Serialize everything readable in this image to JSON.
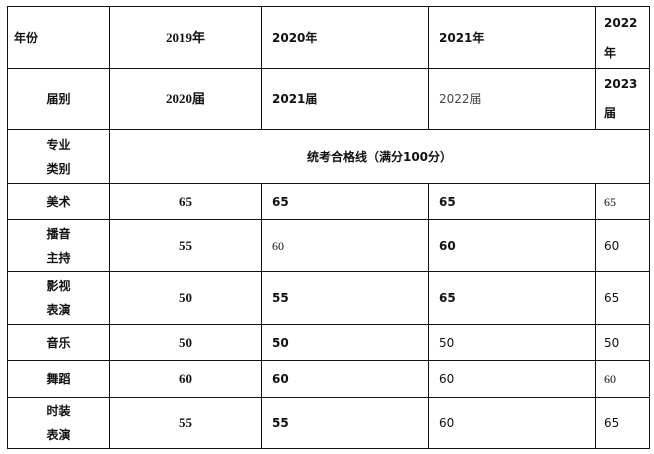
{
  "header": {
    "year_label": "年份",
    "years": [
      "2019年",
      "2020年",
      "2021年",
      "2022\n年"
    ],
    "class_label": "届别",
    "classes": [
      "2020届",
      "2021届",
      "2022届",
      "2023\n届"
    ],
    "major_label": "专业\n类别",
    "merged_title": "统考合格线（满分100分）"
  },
  "rows": [
    {
      "name": "美术",
      "values": [
        "65",
        "65",
        "65",
        "65"
      ]
    },
    {
      "name": "播音\n主持",
      "values": [
        "55",
        "60",
        "60",
        "60"
      ]
    },
    {
      "name": "影视\n表演",
      "values": [
        "50",
        "55",
        "65",
        "65"
      ]
    },
    {
      "name": "音乐",
      "values": [
        "50",
        "50",
        "50",
        "50"
      ]
    },
    {
      "name": "舞蹈",
      "values": [
        "60",
        "60",
        "60",
        "60"
      ]
    },
    {
      "name": "时装\n表演",
      "values": [
        "55",
        "55",
        "60",
        "65"
      ]
    }
  ]
}
